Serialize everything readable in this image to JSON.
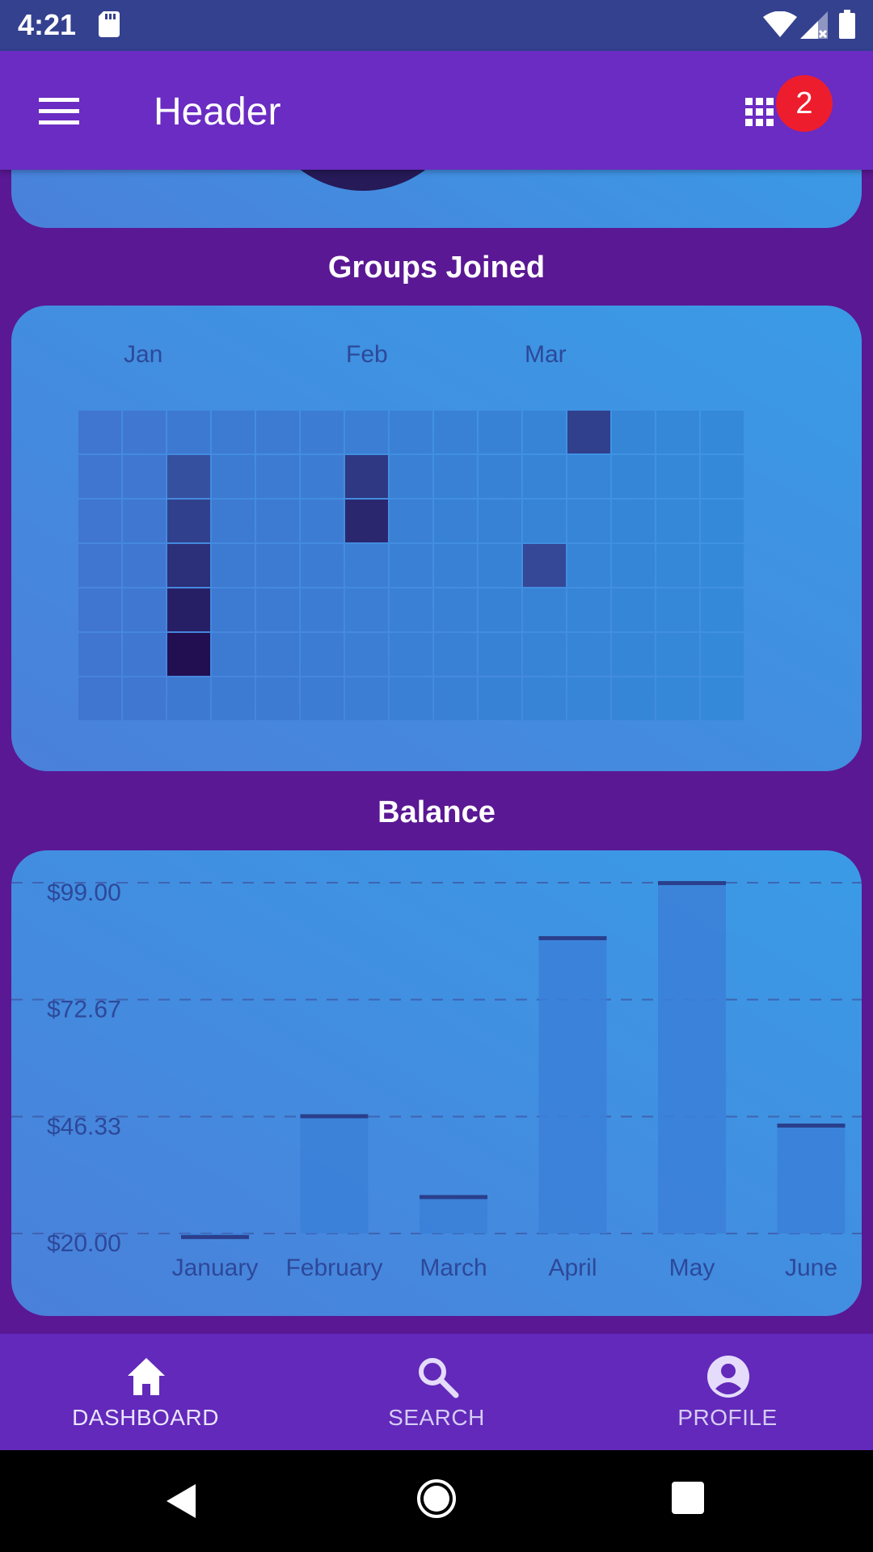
{
  "status_bar": {
    "time": "4:21",
    "icons": [
      "sd-card-icon",
      "wifi-icon",
      "signal-icon",
      "battery-icon"
    ]
  },
  "app_bar": {
    "title": "Header",
    "badge_count": "2",
    "icons": [
      "menu-icon",
      "apps-grid-icon"
    ]
  },
  "groups_section": {
    "title": "Groups Joined",
    "months": [
      "Jan",
      "Feb",
      "Mar"
    ],
    "heatmap": {
      "columns": 15,
      "rows": 7,
      "levels": [
        [
          0,
          0,
          0,
          0,
          0,
          0,
          0,
          0,
          0,
          0,
          0,
          4,
          0,
          0,
          0
        ],
        [
          0,
          0,
          2,
          0,
          0,
          0,
          5,
          0,
          0,
          0,
          0,
          0,
          0,
          0,
          0
        ],
        [
          0,
          0,
          4,
          0,
          0,
          0,
          7,
          0,
          0,
          0,
          0,
          0,
          0,
          0,
          0
        ],
        [
          0,
          0,
          6,
          0,
          0,
          0,
          0,
          0,
          0,
          0,
          3,
          0,
          0,
          0,
          0
        ],
        [
          0,
          0,
          8,
          0,
          0,
          0,
          0,
          0,
          0,
          0,
          0,
          0,
          0,
          0,
          0
        ],
        [
          0,
          0,
          10,
          0,
          0,
          0,
          0,
          0,
          0,
          0,
          0,
          0,
          0,
          0,
          0
        ],
        [
          0,
          0,
          0,
          0,
          0,
          0,
          0,
          0,
          0,
          0,
          0,
          0,
          0,
          0,
          0
        ]
      ]
    }
  },
  "balance_section": {
    "title": "Balance"
  },
  "chart_data": {
    "type": "bar",
    "title": "Balance",
    "categories": [
      "January",
      "February",
      "March",
      "April",
      "May",
      "June"
    ],
    "values": [
      19.3,
      46.5,
      28.3,
      86.6,
      99.0,
      44.4
    ],
    "y_ticks": [
      "$99.00",
      "$72.67",
      "$46.33",
      "$20.00"
    ],
    "ylim": [
      20,
      99
    ],
    "grid": "dashed-horizontal",
    "colors": {
      "bar": "#3b80d8",
      "bar_cap": "#2a3f8c",
      "grid": "#3f5aa8",
      "label": "#2d4899"
    }
  },
  "bottom_nav": {
    "items": [
      {
        "label": "DASHBOARD",
        "icon": "home-icon"
      },
      {
        "label": "SEARCH",
        "icon": "search-icon"
      },
      {
        "label": "PROFILE",
        "icon": "account-circle-icon"
      }
    ]
  },
  "system_nav": {
    "icons": [
      "back-icon",
      "home-circle-icon",
      "recents-icon"
    ]
  }
}
